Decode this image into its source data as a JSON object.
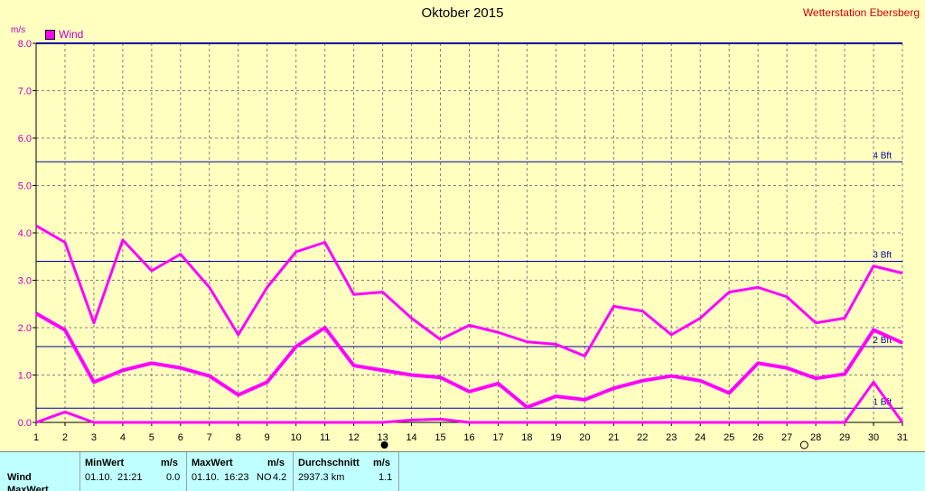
{
  "header": {
    "title": "Oktober 2015",
    "station": "Wetterstation Ebersberg",
    "unit": "m/s",
    "legend_label": "Wind"
  },
  "chart_data": {
    "type": "line",
    "title": "Oktober 2015",
    "ylabel": "m/s",
    "xlim": [
      1,
      31
    ],
    "ylim": [
      0,
      8
    ],
    "x_ticks": [
      1,
      2,
      3,
      4,
      5,
      6,
      7,
      8,
      9,
      10,
      11,
      12,
      13,
      14,
      15,
      16,
      17,
      18,
      19,
      20,
      21,
      22,
      23,
      24,
      25,
      26,
      27,
      28,
      29,
      30,
      31
    ],
    "y_ticks": [
      "0.0",
      "1.0",
      "2.0",
      "3.0",
      "4.0",
      "5.0",
      "6.0",
      "7.0",
      "8.0"
    ],
    "grid": true,
    "legend_position": "top-left",
    "x": [
      1,
      2,
      3,
      4,
      5,
      6,
      7,
      8,
      9,
      10,
      11,
      12,
      13,
      14,
      15,
      16,
      17,
      18,
      19,
      20,
      21,
      22,
      23,
      24,
      25,
      26,
      27,
      28,
      29,
      30,
      31
    ],
    "series": [
      {
        "name": "Wind",
        "values": [
          4.15,
          3.8,
          2.1,
          3.85,
          3.2,
          3.55,
          2.85,
          1.85,
          2.85,
          3.6,
          3.8,
          2.7,
          2.75,
          2.2,
          1.75,
          2.05,
          1.9,
          1.7,
          1.65,
          1.4,
          2.45,
          2.35,
          1.85,
          2.2,
          2.75,
          2.85,
          2.65,
          2.1,
          2.2,
          3.3,
          3.15
        ]
      },
      {
        "values": [
          2.3,
          1.95,
          0.85,
          1.1,
          1.25,
          1.15,
          0.98,
          0.58,
          0.85,
          1.6,
          2.0,
          1.2,
          1.1,
          1.0,
          0.95,
          0.65,
          0.82,
          0.32,
          0.55,
          0.48,
          0.72,
          0.88,
          0.98,
          0.88,
          0.62,
          1.25,
          1.15,
          0.93,
          1.02,
          1.95,
          1.68
        ]
      },
      {
        "values": [
          0,
          0.22,
          0,
          0,
          0,
          0,
          0,
          0,
          0,
          0,
          0,
          0,
          0,
          0.05,
          0.07,
          0,
          0,
          0,
          0,
          0,
          0,
          0,
          0,
          0,
          0,
          0,
          0,
          0,
          0,
          0.85,
          0
        ]
      }
    ],
    "reference_lines": [
      {
        "label": "1 Bft",
        "value": 0.3
      },
      {
        "label": "2 Bft",
        "value": 1.6
      },
      {
        "label": "3 Bft",
        "value": 3.4
      },
      {
        "label": "4 Bft",
        "value": 5.5
      }
    ],
    "colors": {
      "series": "#ff00ff",
      "reference": "#0000a0",
      "grid": "#808080",
      "background": "#ffffc0"
    }
  },
  "stats": {
    "row_label": "Wind",
    "row2_label": "MaxWert",
    "min_header": "MinWert",
    "min_unit": "m/s",
    "min_date": "01.10.",
    "min_time": "21:21",
    "min_value": "0.0",
    "max_header": "MaxWert",
    "max_unit": "m/s",
    "max_date": "01.10.",
    "max_time": "16:23",
    "max_dir": "NO",
    "max_value": "4.2",
    "avg_header": "Durchschnitt",
    "avg_unit": "m/s",
    "avg_distance": "2937.3 km",
    "avg_value": "1.1"
  }
}
